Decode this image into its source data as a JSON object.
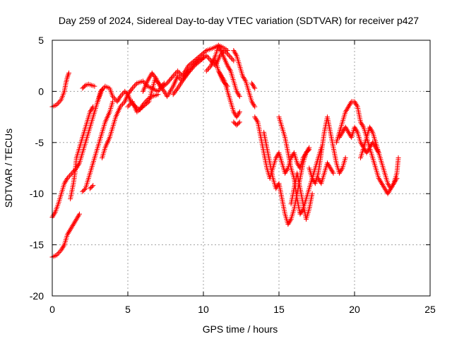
{
  "chart_data": {
    "type": "scatter",
    "title": "Day 259 of 2024, Sidereal Day-to-day VTEC variation (SDTVAR) for receiver p427",
    "xlabel": "GPS time / hours",
    "ylabel": "SDTVAR / TECUs",
    "xlim": [
      0,
      25
    ],
    "ylim": [
      -20,
      5
    ],
    "xticks": [
      0,
      5,
      10,
      15,
      20,
      25
    ],
    "yticks": [
      -20,
      -15,
      -10,
      -5,
      0,
      5
    ],
    "xtick_labels": [
      "0",
      "5",
      "10",
      "15",
      "20",
      "25"
    ],
    "ytick_labels": [
      "-20",
      "-15",
      "-10",
      "-5",
      "0",
      "5"
    ],
    "grid": true,
    "marker": "+",
    "color": "#ff0000",
    "series": [
      {
        "name": "s1",
        "x": [
          0.0,
          0.3,
          0.6,
          0.8,
          0.9,
          1.0,
          1.1
        ],
        "y": [
          -1.5,
          -1.3,
          -0.8,
          0.0,
          0.8,
          1.4,
          1.8
        ]
      },
      {
        "name": "s2",
        "x": [
          0.0,
          0.2,
          0.4,
          0.6,
          0.8,
          1.0,
          1.3,
          1.6,
          1.8,
          2.0,
          2.2,
          2.4,
          2.6,
          2.8,
          3.0,
          3.3
        ],
        "y": [
          -12.3,
          -11.8,
          -11.0,
          -10.0,
          -9.0,
          -8.5,
          -8.0,
          -7.5,
          -7.0,
          -6.0,
          -5.0,
          -4.0,
          -3.0,
          -2.0,
          -1.0,
          0.2
        ]
      },
      {
        "name": "s3",
        "x": [
          0.0,
          0.3,
          0.6,
          0.8,
          1.0,
          1.2,
          1.4,
          1.6,
          1.8
        ],
        "y": [
          -16.2,
          -16.0,
          -15.5,
          -15.0,
          -14.0,
          -13.5,
          -13.0,
          -12.5,
          -12.0
        ]
      },
      {
        "name": "s4",
        "x": [
          1.2,
          1.4,
          1.5,
          1.6,
          1.8,
          2.0,
          2.2,
          2.4,
          2.5,
          2.7
        ],
        "y": [
          -10.5,
          -9.0,
          -8.0,
          -6.5,
          -5.5,
          -4.5,
          -3.5,
          -2.5,
          -2.0,
          -1.5
        ]
      },
      {
        "name": "s5",
        "x": [
          2.0,
          2.2,
          2.4,
          2.6,
          2.8
        ],
        "y": [
          0.3,
          0.6,
          0.7,
          0.6,
          0.5
        ]
      },
      {
        "name": "s6",
        "x": [
          2.0,
          2.2,
          2.4,
          2.6,
          2.8,
          3.0,
          3.3,
          3.5,
          3.8,
          4.0
        ],
        "y": [
          -9.8,
          -9.5,
          -8.5,
          -7.5,
          -6.5,
          -5.5,
          -4.0,
          -3.0,
          -2.0,
          -1.0
        ]
      },
      {
        "name": "s7",
        "x": [
          2.5,
          2.7
        ],
        "y": [
          -9.5,
          -9.2
        ]
      },
      {
        "name": "s8",
        "x": [
          3.0,
          3.2,
          3.5,
          3.8,
          4.0,
          4.3,
          4.5,
          4.8,
          5.0,
          5.2,
          5.5,
          5.8,
          6.0,
          6.3,
          6.6,
          7.0
        ],
        "y": [
          -1.0,
          0.0,
          0.5,
          0.3,
          -0.5,
          -1.0,
          -0.5,
          0.0,
          -0.3,
          -1.0,
          -1.5,
          -1.8,
          -1.3,
          -0.8,
          -0.5,
          -0.3
        ]
      },
      {
        "name": "s9",
        "x": [
          3.3,
          3.5,
          3.8,
          4.0,
          4.2,
          4.5,
          4.8,
          5.0,
          5.3,
          5.6,
          6.0,
          6.3,
          6.6,
          7.0,
          7.4
        ],
        "y": [
          -6.5,
          -5.5,
          -4.5,
          -3.5,
          -2.5,
          -1.5,
          -1.0,
          -0.3,
          0.3,
          0.8,
          1.0,
          0.5,
          0.3,
          0.0,
          0.8
        ]
      },
      {
        "name": "s10",
        "x": [
          5.0,
          5.3,
          5.6,
          6.0,
          6.4,
          6.8,
          7.2,
          7.6,
          8.0,
          8.3,
          8.6,
          9.0,
          9.3,
          9.6,
          10.0
        ],
        "y": [
          -1.5,
          -1.0,
          -2.0,
          -1.5,
          -1.0,
          1.2,
          0.5,
          -0.5,
          0.5,
          1.5,
          1.0,
          2.0,
          2.5,
          3.0,
          3.3
        ]
      },
      {
        "name": "s11",
        "x": [
          6.0,
          6.3,
          6.6,
          6.9,
          7.2,
          7.6,
          8.0,
          8.3,
          8.6,
          9.0,
          9.4,
          9.8,
          10.2,
          10.6,
          11.0,
          11.3,
          11.6
        ],
        "y": [
          0.0,
          1.0,
          1.8,
          1.2,
          0.3,
          0.8,
          1.5,
          2.0,
          1.5,
          2.5,
          3.0,
          3.5,
          4.0,
          4.2,
          4.5,
          4.3,
          4.0
        ]
      },
      {
        "name": "s12",
        "x": [
          8.0,
          8.3,
          8.6,
          9.0,
          9.4,
          9.8,
          10.2,
          10.5,
          10.8,
          11.1,
          11.4,
          11.7,
          12.0
        ],
        "y": [
          -0.3,
          0.3,
          1.0,
          1.8,
          2.5,
          3.0,
          3.5,
          3.0,
          2.5,
          3.5,
          4.0,
          3.5,
          3.0
        ]
      },
      {
        "name": "s13",
        "x": [
          10.2,
          10.5,
          10.8,
          11.0,
          11.3,
          11.6,
          11.8,
          12.0,
          12.2,
          12.4
        ],
        "y": [
          2.0,
          2.5,
          3.5,
          4.5,
          3.5,
          2.5,
          2.0,
          1.0,
          0.0,
          -0.5
        ]
      },
      {
        "name": "s14",
        "x": [
          10.8,
          11.0,
          11.2,
          11.4,
          11.6,
          11.8,
          12.0,
          12.2,
          12.4
        ],
        "y": [
          3.0,
          2.0,
          1.5,
          1.0,
          0.0,
          -1.0,
          -2.0,
          -2.5,
          -2.0
        ]
      },
      {
        "name": "s15",
        "x": [
          12.0,
          12.2,
          12.4,
          12.6,
          12.8,
          13.0,
          13.2,
          13.4
        ],
        "y": [
          4.0,
          3.5,
          2.5,
          1.5,
          1.0,
          0.0,
          -1.0,
          -1.5
        ]
      },
      {
        "name": "s16",
        "x": [
          11.0,
          11.3,
          11.6
        ],
        "y": [
          2.0,
          1.0,
          0.5
        ]
      },
      {
        "name": "s17",
        "x": [
          12.0,
          12.2,
          12.4
        ],
        "y": [
          -3.0,
          -3.3,
          -3.0
        ]
      },
      {
        "name": "s18",
        "x": [
          13.2,
          13.4
        ],
        "y": [
          0.8,
          0.3
        ]
      },
      {
        "name": "s19",
        "x": [
          13.4,
          13.6,
          13.8,
          14.0,
          14.2,
          14.4,
          14.6,
          14.8,
          15.0,
          15.2,
          15.4,
          15.6,
          15.8,
          16.0,
          16.2,
          16.4,
          16.6,
          16.8,
          17.0
        ],
        "y": [
          -2.5,
          -3.0,
          -4.5,
          -6.0,
          -7.5,
          -8.5,
          -7.5,
          -6.5,
          -6.0,
          -7.0,
          -8.0,
          -7.5,
          -6.5,
          -6.0,
          -7.0,
          -7.5,
          -6.5,
          -6.0,
          -5.5
        ]
      },
      {
        "name": "s20",
        "x": [
          14.0,
          14.2,
          14.4,
          14.6,
          14.8,
          15.0,
          15.2,
          15.4,
          15.6,
          15.8,
          16.0,
          16.2,
          16.4,
          16.6,
          16.8,
          17.0
        ],
        "y": [
          -4.0,
          -5.5,
          -7.0,
          -8.5,
          -9.5,
          -9.0,
          -10.5,
          -12.0,
          -13.0,
          -12.5,
          -11.5,
          -10.0,
          -8.5,
          -7.0,
          -6.0,
          -5.7
        ]
      },
      {
        "name": "s21",
        "x": [
          15.0,
          15.2,
          15.4,
          15.6,
          15.8,
          16.0,
          16.2,
          16.4,
          16.6,
          16.8,
          17.0,
          17.2,
          17.4,
          17.6,
          17.8
        ],
        "y": [
          -2.5,
          -3.5,
          -4.5,
          -6.0,
          -7.5,
          -8.5,
          -10.5,
          -12.0,
          -11.5,
          -10.5,
          -9.5,
          -8.5,
          -7.5,
          -6.5,
          -5.5
        ]
      },
      {
        "name": "s22",
        "x": [
          15.8,
          16.0,
          16.2,
          16.4,
          16.6,
          16.8,
          17.0,
          17.2
        ],
        "y": [
          -11.0,
          -9.5,
          -8.0,
          -9.5,
          -11.0,
          -12.5,
          -11.5,
          -10.0
        ]
      },
      {
        "name": "s23",
        "x": [
          17.0,
          17.2,
          17.4,
          17.6,
          17.8,
          18.0,
          18.2,
          18.4,
          18.6,
          18.8,
          19.0,
          19.2,
          19.4
        ],
        "y": [
          -7.5,
          -8.5,
          -9.0,
          -8.0,
          -6.0,
          -4.0,
          -2.5,
          -4.0,
          -5.5,
          -7.0,
          -8.0,
          -7.5,
          -6.5
        ]
      },
      {
        "name": "s24",
        "x": [
          17.6,
          17.8,
          18.0,
          18.2,
          18.4,
          18.6
        ],
        "y": [
          -8.5,
          -9.0,
          -8.0,
          -7.0,
          -7.5,
          -8.0
        ]
      },
      {
        "name": "s25",
        "x": [
          18.8,
          19.0,
          19.2,
          19.4,
          19.6,
          19.8,
          20.0,
          20.2,
          20.4,
          20.6,
          20.8,
          21.0,
          21.2,
          21.4,
          21.6
        ],
        "y": [
          -5.0,
          -4.0,
          -3.0,
          -2.0,
          -1.5,
          -1.0,
          -1.0,
          -1.5,
          -3.0,
          -3.5,
          -4.5,
          -5.5,
          -5.0,
          -5.5,
          -6.0
        ]
      },
      {
        "name": "s26",
        "x": [
          19.0,
          19.2,
          19.4,
          19.6,
          19.8,
          20.0,
          20.2,
          20.4,
          20.6,
          20.8,
          21.0,
          21.2,
          21.4,
          21.6,
          21.8,
          22.0,
          22.2,
          22.4,
          22.6,
          22.8
        ],
        "y": [
          -4.5,
          -4.0,
          -3.5,
          -4.0,
          -4.5,
          -3.5,
          -4.0,
          -5.0,
          -5.5,
          -6.0,
          -5.5,
          -6.5,
          -7.5,
          -8.5,
          -9.0,
          -9.5,
          -10.0,
          -9.5,
          -9.0,
          -8.5
        ]
      },
      {
        "name": "s27",
        "x": [
          20.4,
          20.6,
          20.8,
          21.0,
          21.2,
          21.4,
          21.6,
          21.8,
          22.0,
          22.2,
          22.4,
          22.6,
          22.8,
          22.9
        ],
        "y": [
          -6.5,
          -5.5,
          -4.5,
          -3.5,
          -4.0,
          -5.0,
          -6.0,
          -7.0,
          -8.0,
          -9.0,
          -9.5,
          -9.0,
          -8.0,
          -6.5
        ]
      }
    ]
  }
}
